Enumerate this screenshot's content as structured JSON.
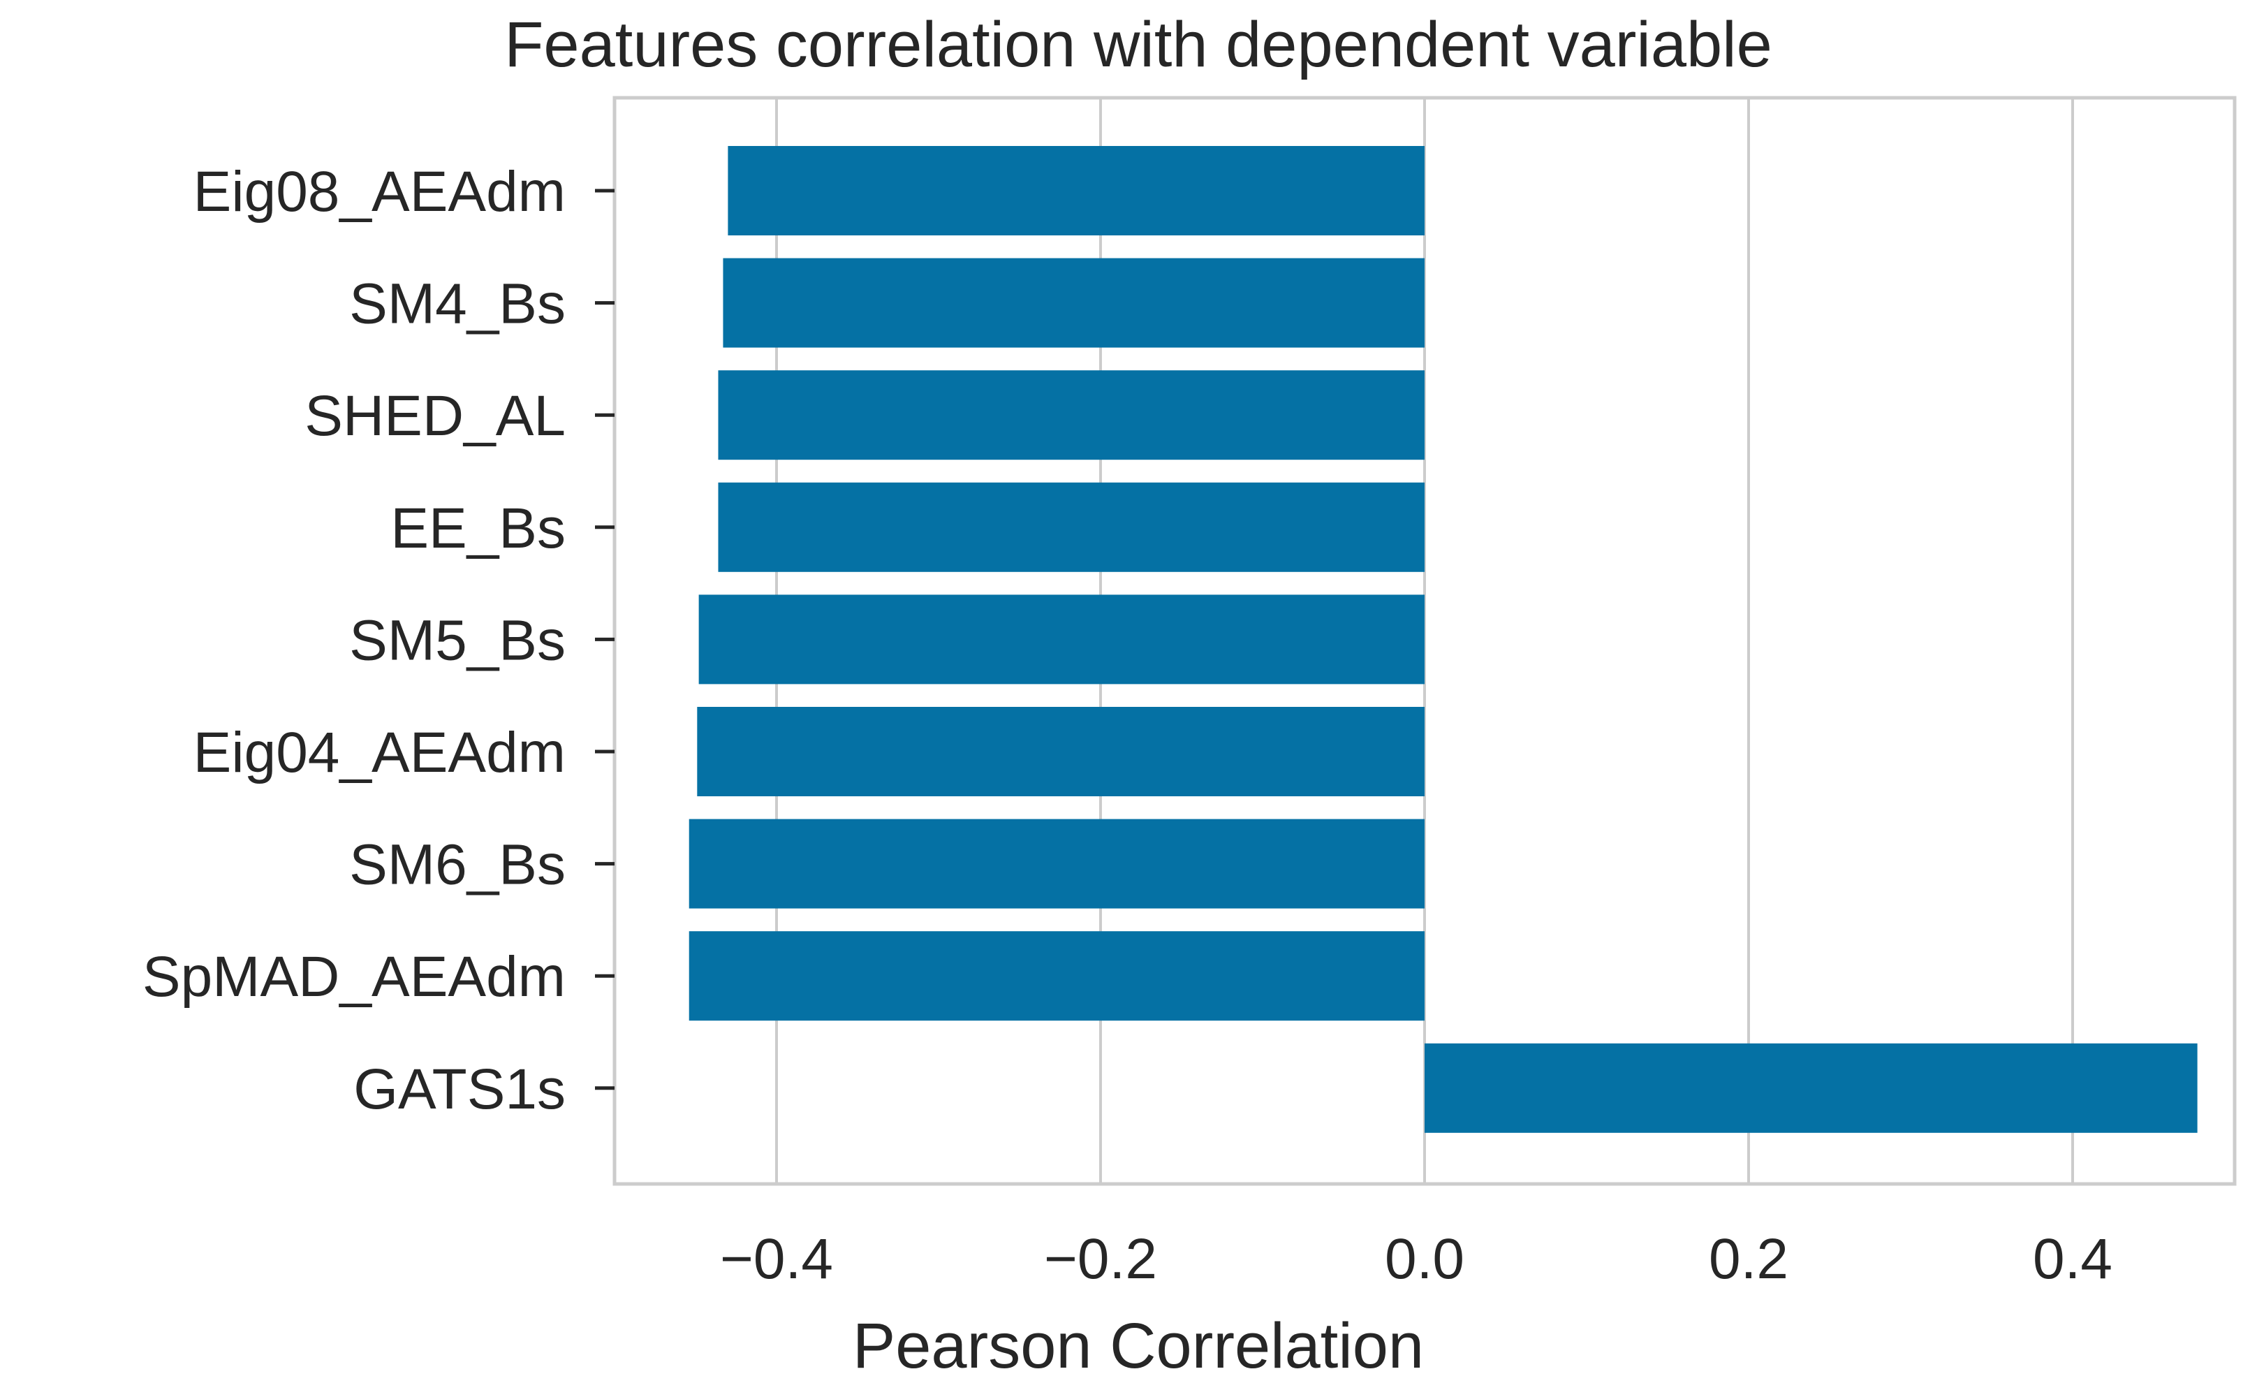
{
  "chart_data": {
    "type": "bar",
    "orientation": "horizontal",
    "title": "Features correlation with dependent variable",
    "xlabel": "Pearson Correlation",
    "ylabel": "",
    "categories": [
      "Eig08_AEAdm",
      "SM4_Bs",
      "SHED_AL",
      "EE_Bs",
      "SM5_Bs",
      "Eig04_AEAdm",
      "SM6_Bs",
      "SpMAD_AEAdm",
      "GATS1s"
    ],
    "values": [
      -0.43,
      -0.433,
      -0.436,
      -0.436,
      -0.448,
      -0.449,
      -0.454,
      -0.454,
      0.477
    ],
    "xlim": [
      -0.5,
      0.5
    ],
    "xticks": [
      -0.4,
      -0.2,
      0.0,
      0.2,
      0.4
    ],
    "xtick_labels": [
      "−0.4",
      "−0.2",
      "0.0",
      "0.2",
      "0.4"
    ],
    "grid": true,
    "bar_color": "#0571a4",
    "grid_color": "#cccccc",
    "spine_color": "#cccccc",
    "text_color": "#262626"
  }
}
